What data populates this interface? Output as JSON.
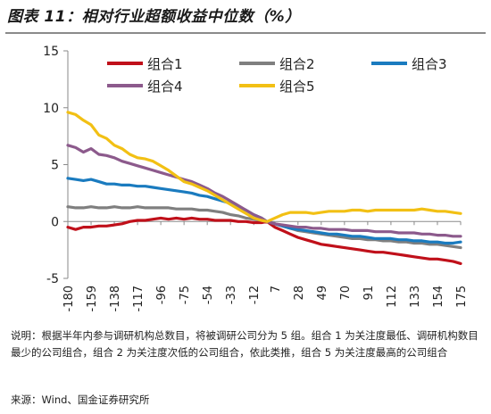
{
  "figure": {
    "title": "图表 11：相对行业超额收益中位数（%）",
    "note": "说明：根据半年内参与调研机构总数目，将被调研公司分为 5 组。组合 1 为关注度最低、调研机构数目最少的公司组合，组合 2 为关注度次低的公司组合，依此类推，组合 5 为关注度最高的公司组合",
    "source": "来源：Wind、国金证券研究所"
  },
  "chart_data": {
    "type": "line",
    "x": [
      -180,
      -173,
      -166,
      -159,
      -152,
      -145,
      -138,
      -131,
      -124,
      -117,
      -110,
      -103,
      -96,
      -89,
      -82,
      -75,
      -68,
      -61,
      -54,
      -47,
      -40,
      -33,
      -26,
      -19,
      -12,
      -5,
      0,
      7,
      14,
      21,
      28,
      35,
      42,
      49,
      56,
      63,
      70,
      77,
      84,
      91,
      98,
      105,
      112,
      119,
      126,
      133,
      140,
      147,
      154,
      161,
      168,
      175
    ],
    "x_ticks": [
      -180,
      -159,
      -138,
      -117,
      -96,
      -75,
      -54,
      -33,
      -12,
      7,
      28,
      49,
      70,
      91,
      112,
      133,
      154,
      175
    ],
    "ylim": [
      -5,
      15
    ],
    "y_ticks": [
      -5,
      0,
      5,
      10,
      15
    ],
    "grid": false,
    "legend_position": "top",
    "series": [
      {
        "name": "组合1",
        "color": "#C0101A",
        "values": [
          -0.5,
          -0.7,
          -0.5,
          -0.5,
          -0.4,
          -0.4,
          -0.3,
          -0.2,
          0.0,
          0.1,
          0.1,
          0.2,
          0.3,
          0.2,
          0.3,
          0.2,
          0.3,
          0.2,
          0.2,
          0.1,
          0.1,
          0.1,
          0.0,
          0.0,
          -0.1,
          -0.1,
          0.0,
          -0.5,
          -0.8,
          -1.1,
          -1.4,
          -1.6,
          -1.8,
          -2.0,
          -2.1,
          -2.2,
          -2.3,
          -2.4,
          -2.5,
          -2.6,
          -2.7,
          -2.7,
          -2.8,
          -2.9,
          -3.0,
          -3.1,
          -3.2,
          -3.3,
          -3.3,
          -3.4,
          -3.5,
          -3.7
        ]
      },
      {
        "name": "组合2",
        "color": "#7F7F7F",
        "values": [
          1.3,
          1.2,
          1.2,
          1.3,
          1.2,
          1.2,
          1.3,
          1.2,
          1.2,
          1.3,
          1.2,
          1.2,
          1.2,
          1.2,
          1.1,
          1.1,
          1.1,
          1.0,
          1.0,
          0.9,
          0.8,
          0.6,
          0.5,
          0.3,
          0.2,
          0.1,
          0.0,
          -0.2,
          -0.4,
          -0.6,
          -0.8,
          -0.9,
          -1.0,
          -1.1,
          -1.2,
          -1.3,
          -1.4,
          -1.5,
          -1.5,
          -1.6,
          -1.6,
          -1.7,
          -1.7,
          -1.8,
          -1.8,
          -1.9,
          -1.9,
          -2.0,
          -2.0,
          -2.1,
          -2.2,
          -2.3
        ]
      },
      {
        "name": "组合3",
        "color": "#1A7BBF",
        "values": [
          3.8,
          3.7,
          3.6,
          3.7,
          3.5,
          3.3,
          3.3,
          3.2,
          3.2,
          3.1,
          3.1,
          3.0,
          2.9,
          2.8,
          2.7,
          2.6,
          2.5,
          2.3,
          2.2,
          2.0,
          1.8,
          1.6,
          1.3,
          1.0,
          0.6,
          0.3,
          0.0,
          -0.2,
          -0.4,
          -0.6,
          -0.7,
          -0.8,
          -0.9,
          -1.0,
          -1.1,
          -1.1,
          -1.2,
          -1.3,
          -1.3,
          -1.4,
          -1.5,
          -1.5,
          -1.5,
          -1.6,
          -1.6,
          -1.7,
          -1.7,
          -1.8,
          -1.8,
          -1.9,
          -1.9,
          -1.8
        ]
      },
      {
        "name": "组合4",
        "color": "#8C5A8C",
        "values": [
          6.7,
          6.5,
          6.1,
          6.4,
          5.9,
          5.8,
          5.6,
          5.3,
          5.1,
          4.9,
          4.7,
          4.5,
          4.3,
          4.1,
          3.9,
          3.7,
          3.5,
          3.2,
          2.9,
          2.5,
          2.2,
          1.8,
          1.4,
          1.0,
          0.6,
          0.3,
          0.0,
          -0.2,
          -0.3,
          -0.4,
          -0.5,
          -0.5,
          -0.6,
          -0.6,
          -0.7,
          -0.7,
          -0.7,
          -0.8,
          -0.8,
          -0.8,
          -0.9,
          -0.9,
          -0.9,
          -1.0,
          -1.0,
          -1.0,
          -1.1,
          -1.1,
          -1.2,
          -1.2,
          -1.3,
          -1.3
        ]
      },
      {
        "name": "组合5",
        "color": "#F2C014",
        "values": [
          9.6,
          9.4,
          8.9,
          8.5,
          7.6,
          7.3,
          6.7,
          6.4,
          5.9,
          5.6,
          5.5,
          5.3,
          4.9,
          4.5,
          4.0,
          3.5,
          3.3,
          3.0,
          2.7,
          2.3,
          1.9,
          1.5,
          1.1,
          0.7,
          0.3,
          0.1,
          0.0,
          0.3,
          0.6,
          0.8,
          0.8,
          0.8,
          0.7,
          0.8,
          0.9,
          0.9,
          0.9,
          1.0,
          1.0,
          0.9,
          1.0,
          1.0,
          1.0,
          1.0,
          1.0,
          1.0,
          1.1,
          1.0,
          0.9,
          0.9,
          0.8,
          0.7
        ]
      }
    ]
  }
}
